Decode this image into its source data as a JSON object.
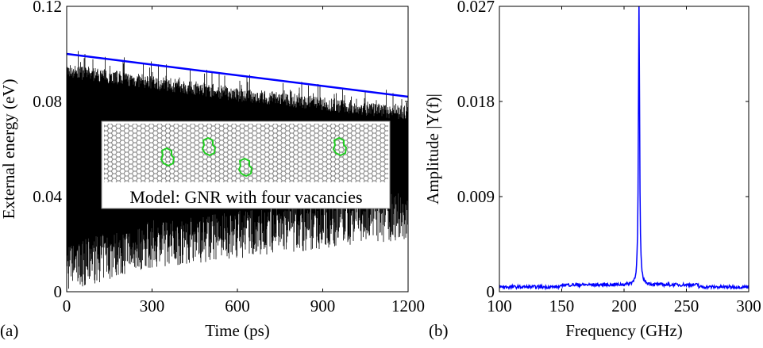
{
  "chart_data": [
    {
      "panel_label": "(a)",
      "type": "line",
      "xlabel": "Time (ps)",
      "ylabel": "External energy (eV)",
      "xlim": [
        0,
        1200
      ],
      "ylim": [
        0,
        0.12
      ],
      "xticks": [
        "0",
        "300",
        "600",
        "900",
        "1200"
      ],
      "yticks": [
        "0",
        "0.04",
        "0.08",
        "0.12"
      ],
      "grid": false,
      "series": [
        {
          "kind": "oscillating energy signal",
          "color": "#000000",
          "upper_envelope": {
            "x": [
              0,
              300,
              600,
              900,
              1200
            ],
            "y": [
              0.1,
              0.095,
              0.09,
              0.086,
              0.082
            ]
          },
          "lower_envelope": {
            "x": [
              0,
              300,
              600,
              900,
              1200
            ],
            "y": [
              0.008,
              0.018,
              0.022,
              0.026,
              0.03
            ]
          }
        },
        {
          "kind": "linear decay fit",
          "color": "#0000ff",
          "x": [
            0,
            1200
          ],
          "y": [
            0.1,
            0.082
          ]
        }
      ],
      "inset": {
        "caption": "Model: GNR with four vacancies",
        "lattice_color": "#808080",
        "vacancy_color": "#22cc22",
        "vacancy_count": 4
      }
    },
    {
      "panel_label": "(b)",
      "type": "line",
      "xlabel": "Frequency (GHz)",
      "ylabel": "Amplitude |Y(f)|",
      "xlim": [
        100,
        300
      ],
      "ylim": [
        0,
        0.027
      ],
      "xticks": [
        "100",
        "150",
        "200",
        "250",
        "300"
      ],
      "yticks": [
        "0",
        "0.009",
        "0.018",
        "0.027"
      ],
      "grid": false,
      "series": [
        {
          "kind": "spectrum",
          "color": "#0000ff",
          "peak_x": 212,
          "peak_y": 0.027,
          "baseline": 0.0003
        }
      ]
    }
  ]
}
